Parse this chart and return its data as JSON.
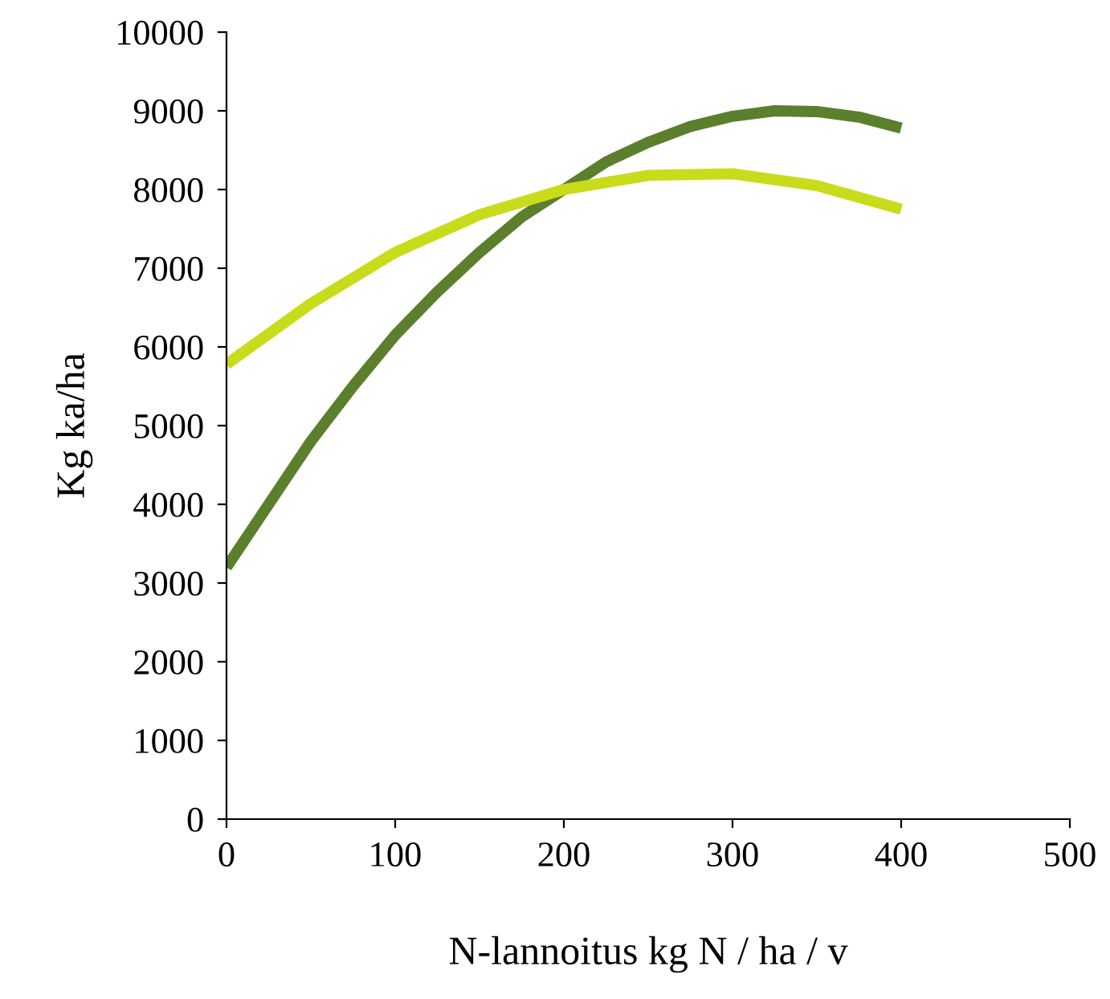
{
  "chart_data": {
    "type": "line",
    "xlabel": "N-lannoitus kg N / ha / v",
    "ylabel": "Kg ka/ha",
    "xlim": [
      0,
      500
    ],
    "xticks": [
      0,
      100,
      200,
      300,
      400,
      500
    ],
    "ylim": [
      0,
      10000
    ],
    "yticks": [
      0,
      1000,
      2000,
      3000,
      4000,
      5000,
      6000,
      7000,
      8000,
      9000,
      10000
    ],
    "grid": false,
    "legend": false,
    "marker": "none",
    "line_style": "solid",
    "series": [
      {
        "color": "#5b7f2c",
        "x": [
          0,
          25,
          50,
          75,
          100,
          125,
          150,
          175,
          200,
          225,
          250,
          275,
          300,
          325,
          350,
          375,
          400
        ],
        "values": [
          3200,
          4000,
          4800,
          5500,
          6150,
          6700,
          7200,
          7650,
          8000,
          8350,
          8600,
          8800,
          8930,
          9000,
          8990,
          8920,
          8780
        ]
      },
      {
        "color": "#c9dc1c",
        "x": [
          0,
          50,
          100,
          150,
          200,
          250,
          300,
          350,
          400
        ],
        "values": [
          5780,
          6550,
          7200,
          7680,
          8000,
          8180,
          8200,
          8050,
          7750
        ]
      }
    ]
  }
}
